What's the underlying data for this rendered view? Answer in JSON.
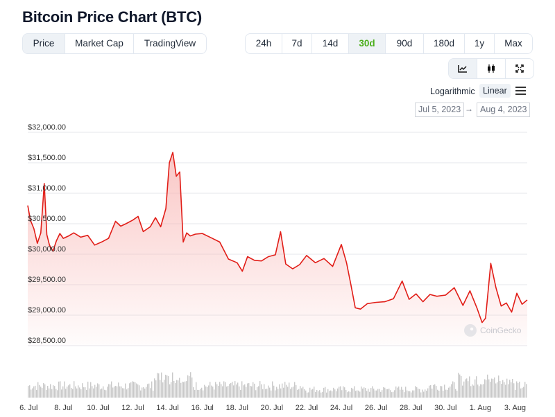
{
  "header": {
    "title": "Bitcoin Price Chart (BTC)"
  },
  "view_tabs": [
    {
      "label": "Price",
      "active": true
    },
    {
      "label": "Market Cap",
      "active": false
    },
    {
      "label": "TradingView",
      "active": false
    }
  ],
  "range_tabs": [
    {
      "label": "24h",
      "active": false
    },
    {
      "label": "7d",
      "active": false
    },
    {
      "label": "14d",
      "active": false
    },
    {
      "label": "30d",
      "active": true
    },
    {
      "label": "90d",
      "active": false
    },
    {
      "label": "180d",
      "active": false
    },
    {
      "label": "1y",
      "active": false
    },
    {
      "label": "Max",
      "active": false
    }
  ],
  "tools": [
    {
      "icon": "line-chart-icon",
      "active": true
    },
    {
      "icon": "candlestick-icon",
      "active": false
    },
    {
      "icon": "fullscreen-icon",
      "active": false
    }
  ],
  "scale": {
    "logarithmic_label": "Logarithmic",
    "linear_label": "Linear",
    "selected": "linear",
    "menu_icon": "hamburger-menu-icon"
  },
  "date_range": {
    "from": "Jul 5, 2023",
    "to": "Aug 4, 2023",
    "arrow": "→"
  },
  "watermark": {
    "text": "CoinGecko",
    "icon": "coingecko-logo-icon"
  },
  "colors": {
    "line": "#e11d17",
    "fill_top": "#f8b4b2",
    "accent_green": "#4caf1c",
    "volume": "#c9c9c9"
  },
  "chart_data": {
    "type": "area",
    "title": "",
    "xlabel": "",
    "ylabel": "",
    "ylim": [
      28500,
      32000
    ],
    "grid": true,
    "y_ticks": [
      "$28,500.00",
      "$29,000.00",
      "$29,500.00",
      "$30,000.00",
      "$30,500.00",
      "$31,000.00",
      "$31,500.00",
      "$32,000.00"
    ],
    "y_tick_values": [
      28500,
      29000,
      29500,
      30000,
      30500,
      31000,
      31500,
      32000
    ],
    "x_ticks": [
      "6. Jul",
      "8. Jul",
      "10. Jul",
      "12. Jul",
      "14. Jul",
      "16. Jul",
      "18. Jul",
      "20. Jul",
      "22. Jul",
      "24. Jul",
      "26. Jul",
      "28. Jul",
      "30. Jul",
      "1. Aug",
      "3. Aug"
    ],
    "x_tick_days": [
      6,
      8,
      10,
      12,
      14,
      16,
      18,
      20,
      22,
      24,
      26,
      28,
      30,
      32,
      34
    ],
    "x_range_days": [
      5.95,
      34.7
    ],
    "series": [
      {
        "x_days": [
          5.95,
          6.1,
          6.3,
          6.5,
          6.7,
          6.9,
          7.05,
          7.2,
          7.4,
          7.6,
          7.8,
          8.0,
          8.3,
          8.6,
          9.0,
          9.4,
          9.8,
          10.2,
          10.6,
          11.0,
          11.3,
          11.6,
          12.0,
          12.3,
          12.6,
          13.0,
          13.3,
          13.6,
          13.9,
          14.1,
          14.3,
          14.5,
          14.7,
          14.9,
          15.1,
          15.3,
          15.6,
          16.0,
          16.5,
          17.0,
          17.5,
          18.0,
          18.3,
          18.6,
          19.0,
          19.4,
          19.8,
          20.2,
          20.5,
          20.8,
          21.2,
          21.6,
          22.0,
          22.5,
          23.0,
          23.5,
          24.0,
          24.3,
          24.55,
          24.8,
          25.1,
          25.5,
          26.0,
          26.5,
          27.0,
          27.5,
          27.9,
          28.3,
          28.7,
          29.1,
          29.5,
          30.0,
          30.5,
          31.0,
          31.4,
          31.8,
          32.1,
          32.3,
          32.6,
          32.9,
          33.2,
          33.5,
          33.8,
          34.1,
          34.4,
          34.7
        ],
        "values": [
          30800,
          30560,
          30420,
          30180,
          30350,
          31160,
          30320,
          30150,
          30050,
          30220,
          30340,
          30260,
          30300,
          30350,
          30280,
          30310,
          30150,
          30200,
          30260,
          30540,
          30460,
          30500,
          30560,
          30620,
          30370,
          30450,
          30600,
          30450,
          30750,
          31500,
          31670,
          31280,
          31350,
          30200,
          30350,
          30300,
          30330,
          30340,
          30270,
          30200,
          29920,
          29860,
          29720,
          29960,
          29900,
          29890,
          29960,
          29990,
          30370,
          29840,
          29760,
          29830,
          29980,
          29860,
          29930,
          29800,
          30160,
          29860,
          29500,
          29120,
          29100,
          29190,
          29210,
          29220,
          29270,
          29560,
          29260,
          29350,
          29220,
          29340,
          29310,
          29330,
          29450,
          29160,
          29400,
          29120,
          28880,
          28950,
          29850,
          29450,
          29150,
          29200,
          29050,
          29360,
          29180,
          29250
        ]
      }
    ],
    "volume_note": "Volume histogram, unlabeled"
  }
}
